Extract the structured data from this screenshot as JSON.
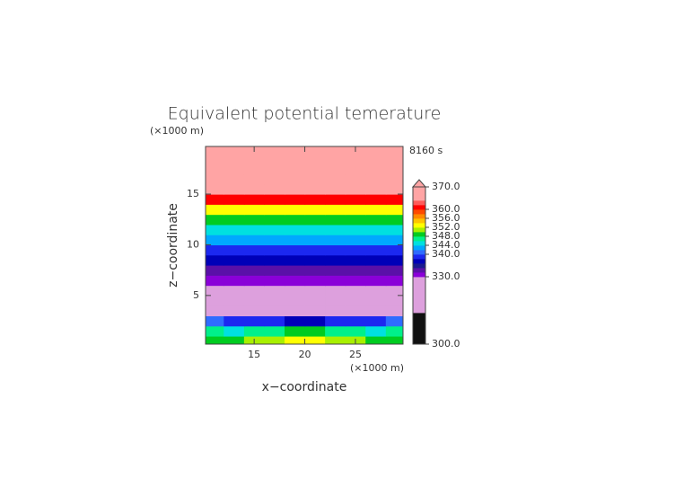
{
  "chart_data": {
    "type": "contour",
    "title": "Equivalent potential temerature",
    "time_label": "8160 s",
    "x_label": "x−coordinate",
    "y_label": "z−coordinate",
    "x_unit": "(×1000 m)",
    "y_unit": "(×1000 m)",
    "xlim": [
      10.2,
      29.7
    ],
    "ylim": [
      0.2,
      19.7
    ],
    "xticks": [
      15,
      20,
      25
    ],
    "yticks": [
      5,
      10,
      15
    ],
    "x": [
      11,
      13,
      15,
      17,
      19,
      21,
      23,
      25,
      27,
      29
    ],
    "z": [
      0.5,
      1.5,
      2.5,
      3.5,
      4.5,
      5.5,
      6.5,
      7.5,
      8.5,
      9.5,
      10.5,
      11.5,
      12.5,
      13.5,
      14.5,
      15.5,
      16.5,
      17.5,
      18.5,
      19.5
    ],
    "values": [
      [
        349,
        349,
        350,
        351,
        353,
        353,
        351,
        350,
        349,
        349
      ],
      [
        346,
        345,
        346,
        347,
        348,
        348,
        347,
        346,
        345,
        346
      ],
      [
        340,
        339,
        339,
        338,
        336,
        336,
        338,
        339,
        339,
        340
      ],
      [
        320,
        320,
        320,
        320,
        322,
        322,
        320,
        320,
        320,
        320
      ],
      [
        320,
        320,
        320,
        320,
        320,
        320,
        320,
        320,
        320,
        320
      ],
      [
        320,
        320,
        320,
        320,
        320,
        320,
        320,
        320,
        320,
        320
      ],
      [
        331,
        331,
        331,
        331,
        331,
        331,
        331,
        331,
        331,
        331
      ],
      [
        333,
        333,
        333,
        333,
        333,
        333,
        333,
        333,
        333,
        333
      ],
      [
        336,
        336,
        336,
        336,
        336,
        336,
        336,
        336,
        336,
        336
      ],
      [
        339,
        339,
        339,
        339,
        339,
        339,
        339,
        339,
        339,
        339
      ],
      [
        342,
        342,
        342,
        342,
        342,
        342,
        342,
        342,
        342,
        342
      ],
      [
        345,
        345,
        345,
        345,
        345,
        345,
        345,
        345,
        345,
        345
      ],
      [
        349,
        349,
        349,
        349,
        349,
        349,
        349,
        349,
        349,
        349
      ],
      [
        353,
        353,
        353,
        353,
        353,
        353,
        353,
        353,
        353,
        353
      ],
      [
        361,
        361,
        361,
        361,
        361,
        361,
        361,
        361,
        361,
        361
      ],
      [
        366,
        366,
        366,
        366,
        366,
        366,
        366,
        366,
        366,
        366
      ],
      [
        366,
        366,
        366,
        366,
        366,
        366,
        366,
        366,
        366,
        366
      ],
      [
        366,
        366,
        366,
        366,
        366,
        366,
        366,
        366,
        366,
        366
      ],
      [
        366,
        366,
        366,
        366,
        366,
        366,
        366,
        366,
        366,
        366
      ],
      [
        366,
        366,
        366,
        366,
        366,
        366,
        366,
        366,
        366,
        366
      ]
    ],
    "colorbar": {
      "lim": [
        300,
        370
      ],
      "levels": [
        300,
        314,
        330,
        332,
        334,
        336,
        338,
        340,
        342,
        344,
        346,
        348,
        350,
        352,
        354,
        356,
        358,
        360,
        362,
        364,
        370
      ],
      "colors": [
        "#111111",
        "#dda0dd",
        "#8a00d8",
        "#5a10a8",
        "#1a1a90",
        "#0000b8",
        "#1c28f0",
        "#2f6cff",
        "#00a8ff",
        "#00e0e0",
        "#00f08a",
        "#00cc20",
        "#a8f000",
        "#ffff00",
        "#ffc400",
        "#ff8a00",
        "#ff4a00",
        "#ff0000",
        "#ff5a5a",
        "#ffa4a4"
      ],
      "ticks": [
        {
          "value": 370,
          "label": "370.0"
        },
        {
          "value": 360,
          "label": "360.0"
        },
        {
          "value": 356,
          "label": "356.0"
        },
        {
          "value": 352,
          "label": "352.0"
        },
        {
          "value": 348,
          "label": "348.0"
        },
        {
          "value": 344,
          "label": "344.0"
        },
        {
          "value": 340,
          "label": "340.0"
        },
        {
          "value": 330,
          "label": "330.0"
        },
        {
          "value": 300,
          "label": "300.0"
        }
      ]
    }
  }
}
